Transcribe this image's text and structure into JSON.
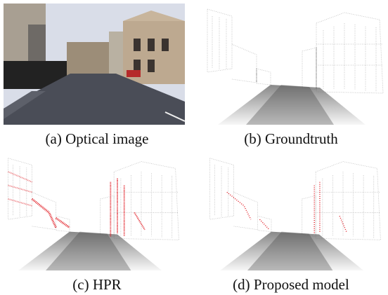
{
  "figure": {
    "panels": [
      {
        "caption": "(a) Optical image"
      },
      {
        "caption": "(b) Groundtruth"
      },
      {
        "caption": "(c) HPR"
      },
      {
        "caption": "(d) Proposed model"
      }
    ]
  }
}
